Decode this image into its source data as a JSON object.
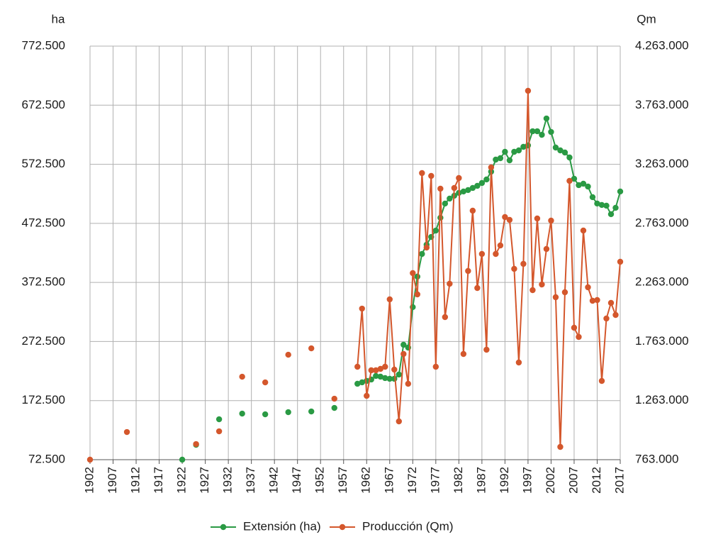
{
  "chart_data": {
    "type": "line",
    "y_label": "ha",
    "y2_label": "Qm",
    "x": [
      1902,
      1903,
      1904,
      1905,
      1906,
      1907,
      1908,
      1909,
      1910,
      1911,
      1912,
      1913,
      1914,
      1915,
      1916,
      1917,
      1918,
      1919,
      1920,
      1921,
      1922,
      1923,
      1924,
      1925,
      1926,
      1927,
      1928,
      1929,
      1930,
      1931,
      1932,
      1933,
      1934,
      1935,
      1936,
      1937,
      1938,
      1939,
      1940,
      1941,
      1942,
      1943,
      1944,
      1945,
      1946,
      1947,
      1948,
      1949,
      1950,
      1951,
      1952,
      1953,
      1954,
      1955,
      1956,
      1957,
      1958,
      1959,
      1960,
      1961,
      1962,
      1963,
      1964,
      1965,
      1966,
      1967,
      1968,
      1969,
      1970,
      1971,
      1972,
      1973,
      1974,
      1975,
      1976,
      1977,
      1978,
      1979,
      1980,
      1981,
      1982,
      1983,
      1984,
      1985,
      1986,
      1987,
      1988,
      1989,
      1990,
      1991,
      1992,
      1993,
      1994,
      1995,
      1996,
      1997,
      1998,
      1999,
      2000,
      2001,
      2002,
      2003,
      2004,
      2005,
      2006,
      2007,
      2008,
      2009,
      2010,
      2011,
      2012,
      2013,
      2014,
      2015,
      2016,
      2017
    ],
    "series": [
      {
        "name": "Extensión (ha)",
        "color": "#2a9a44",
        "axis": "y",
        "values": [
          null,
          null,
          null,
          null,
          null,
          null,
          null,
          null,
          null,
          null,
          null,
          null,
          null,
          null,
          null,
          null,
          null,
          null,
          null,
          null,
          72500,
          null,
          null,
          97700,
          null,
          null,
          null,
          null,
          140900,
          null,
          null,
          null,
          null,
          150500,
          null,
          null,
          null,
          null,
          149300,
          null,
          null,
          null,
          null,
          152900,
          null,
          null,
          null,
          null,
          154100,
          null,
          null,
          null,
          null,
          160100,
          null,
          null,
          null,
          null,
          201000,
          203400,
          205800,
          208200,
          214200,
          213000,
          210600,
          209400,
          209400,
          216600,
          267000,
          262200,
          330700,
          382300,
          420700,
          436300,
          449500,
          460300,
          482000,
          506000,
          514400,
          519200,
          524000,
          526400,
          528800,
          532400,
          536000,
          540800,
          546800,
          560000,
          580400,
          582800,
          593600,
          579200,
          593600,
          596000,
          602000,
          604400,
          628400,
          628400,
          622400,
          650000,
          627200,
          600800,
          596000,
          592400,
          584000,
          548000,
          537200,
          539600,
          534800,
          516800,
          506000,
          503600,
          502400,
          488000,
          498800,
          526400
        ]
      },
      {
        "name": "Producción (Qm)",
        "color": "#d4572c",
        "axis": "y2",
        "values": [
          763000,
          null,
          null,
          null,
          null,
          null,
          null,
          null,
          997000,
          null,
          null,
          null,
          null,
          null,
          null,
          null,
          null,
          null,
          null,
          null,
          null,
          null,
          null,
          895000,
          null,
          null,
          null,
          null,
          1003000,
          null,
          null,
          null,
          null,
          1465000,
          null,
          null,
          null,
          null,
          1417000,
          null,
          null,
          null,
          null,
          1651000,
          null,
          null,
          null,
          null,
          1705000,
          null,
          null,
          null,
          null,
          1279000,
          null,
          null,
          null,
          null,
          1549400,
          2041600,
          1303300,
          1519400,
          1519400,
          1531400,
          1549400,
          2119800,
          1525400,
          1087200,
          1657500,
          1405400,
          2341900,
          2161800,
          3188400,
          2558000,
          3164400,
          1549400,
          3056300,
          1969700,
          2251800,
          3062300,
          3146400,
          1657500,
          2359900,
          2870200,
          2215800,
          2504000,
          1693500,
          3236400,
          2504000,
          2576000,
          2816200,
          2792200,
          2377900,
          1585500,
          2419900,
          3884800,
          2197800,
          2804200,
          2245800,
          2546000,
          2786100,
          2137800,
          871100,
          2179800,
          3122300,
          1879600,
          1801600,
          2702100,
          2221800,
          2107800,
          2113800,
          1429400,
          1957700,
          2089800,
          1987700,
          2437900
        ]
      }
    ],
    "xlim": [
      1902,
      2017
    ],
    "xticks": [
      1902,
      1907,
      1912,
      1917,
      1922,
      1927,
      1932,
      1937,
      1942,
      1947,
      1952,
      1957,
      1962,
      1967,
      1972,
      1977,
      1982,
      1987,
      1992,
      1997,
      2002,
      2007,
      2012,
      2017
    ],
    "ylim": [
      72500,
      772500
    ],
    "yticks": [
      {
        "value": 72500,
        "label": "72.500"
      },
      {
        "value": 172500,
        "label": "172.500"
      },
      {
        "value": 272500,
        "label": "272.500"
      },
      {
        "value": 372500,
        "label": "372.500"
      },
      {
        "value": 472500,
        "label": "472.500"
      },
      {
        "value": 572500,
        "label": "572.500"
      },
      {
        "value": 672500,
        "label": "672.500"
      },
      {
        "value": 772500,
        "label": "772.500"
      }
    ],
    "y2lim": [
      763000,
      4263000
    ],
    "y2ticks": [
      {
        "value": 763000,
        "label": "763.000"
      },
      {
        "value": 1263000,
        "label": "1.263.000"
      },
      {
        "value": 1763000,
        "label": "1.763.000"
      },
      {
        "value": 2263000,
        "label": "2.263.000"
      },
      {
        "value": 2763000,
        "label": "2.763.000"
      },
      {
        "value": 3263000,
        "label": "3.263.000"
      },
      {
        "value": 3763000,
        "label": "3.763.000"
      },
      {
        "value": 4263000,
        "label": "4.263.000"
      }
    ],
    "grid": true,
    "legend": "bottom"
  }
}
